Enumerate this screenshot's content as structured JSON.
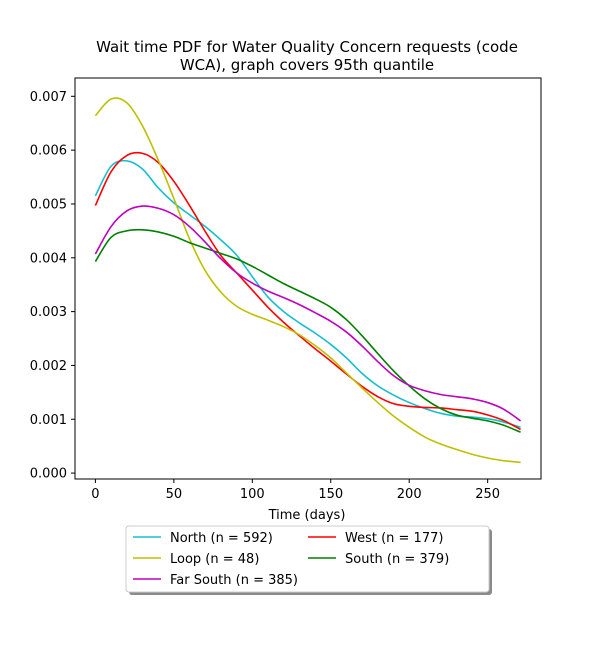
{
  "chart_data": {
    "type": "line",
    "title_line1": "Wait time PDF for Water Quality Concern  requests (code",
    "title_line2": "WCA), graph covers 95th quantile",
    "xlabel": "Time (days)",
    "ylabel": "",
    "xlim": [
      -13,
      284
    ],
    "ylim": [
      -0.00011,
      0.00734
    ],
    "xticks": [
      0,
      50,
      100,
      150,
      200,
      250
    ],
    "yticks": [
      0.0,
      0.001,
      0.002,
      0.003,
      0.004,
      0.005,
      0.006,
      0.007
    ],
    "ytick_labels": [
      "0.000",
      "0.001",
      "0.002",
      "0.003",
      "0.004",
      "0.005",
      "0.006",
      "0.007"
    ],
    "grid": false,
    "legend_placement": "below plot, two columns",
    "x": [
      0,
      10,
      20,
      30,
      40,
      50,
      60,
      70,
      80,
      90,
      100,
      110,
      120,
      130,
      140,
      150,
      160,
      170,
      180,
      190,
      200,
      210,
      220,
      230,
      240,
      250,
      260,
      271
    ],
    "series": [
      {
        "name": "North (n = 592)",
        "color": "#17becf",
        "values": [
          0.00515,
          0.0057,
          0.0058,
          0.00565,
          0.0053,
          0.00502,
          0.0048,
          0.00458,
          0.00433,
          0.00405,
          0.00365,
          0.00327,
          0.003,
          0.00279,
          0.0026,
          0.00239,
          0.00214,
          0.00185,
          0.00162,
          0.00145,
          0.00131,
          0.0012,
          0.00111,
          0.00106,
          0.00104,
          0.00101,
          0.00095,
          0.00085
        ]
      },
      {
        "name": "West (n = 177)",
        "color": "#ff0000",
        "values": [
          0.00497,
          0.0056,
          0.0059,
          0.00594,
          0.00577,
          0.00542,
          0.00497,
          0.00449,
          0.00404,
          0.00372,
          0.0034,
          0.00308,
          0.0028,
          0.00255,
          0.00231,
          0.00208,
          0.00184,
          0.00161,
          0.00142,
          0.00129,
          0.00124,
          0.00122,
          0.00121,
          0.00118,
          0.00115,
          0.00108,
          0.00098,
          0.00081
        ]
      },
      {
        "name": "Loop (n = 48)",
        "color": "#bfbf00",
        "values": [
          0.00664,
          0.00695,
          0.00688,
          0.00645,
          0.00582,
          0.0051,
          0.00435,
          0.00376,
          0.00336,
          0.0031,
          0.00295,
          0.00284,
          0.00272,
          0.00257,
          0.00237,
          0.00214,
          0.00186,
          0.00158,
          0.00131,
          0.00106,
          0.00085,
          0.00067,
          0.00054,
          0.00044,
          0.00035,
          0.00028,
          0.00023,
          0.0002
        ]
      },
      {
        "name": "South (n = 379)",
        "color": "#008000",
        "values": [
          0.00393,
          0.00438,
          0.0045,
          0.00452,
          0.00448,
          0.0044,
          0.00428,
          0.00418,
          0.00408,
          0.00398,
          0.00384,
          0.00368,
          0.00352,
          0.00338,
          0.00324,
          0.00308,
          0.00285,
          0.00255,
          0.00222,
          0.0019,
          0.00162,
          0.00138,
          0.0012,
          0.00108,
          0.00102,
          0.00097,
          0.00089,
          0.00076
        ]
      },
      {
        "name": "Far South (n = 385)",
        "color": "#bf00bf",
        "values": [
          0.00407,
          0.00458,
          0.00487,
          0.00496,
          0.00492,
          0.0048,
          0.00458,
          0.00429,
          0.00398,
          0.00372,
          0.00353,
          0.00338,
          0.00326,
          0.00313,
          0.00298,
          0.00282,
          0.00262,
          0.00236,
          0.00207,
          0.00181,
          0.00163,
          0.00153,
          0.00146,
          0.00142,
          0.00138,
          0.00131,
          0.00119,
          0.00097
        ]
      }
    ]
  }
}
